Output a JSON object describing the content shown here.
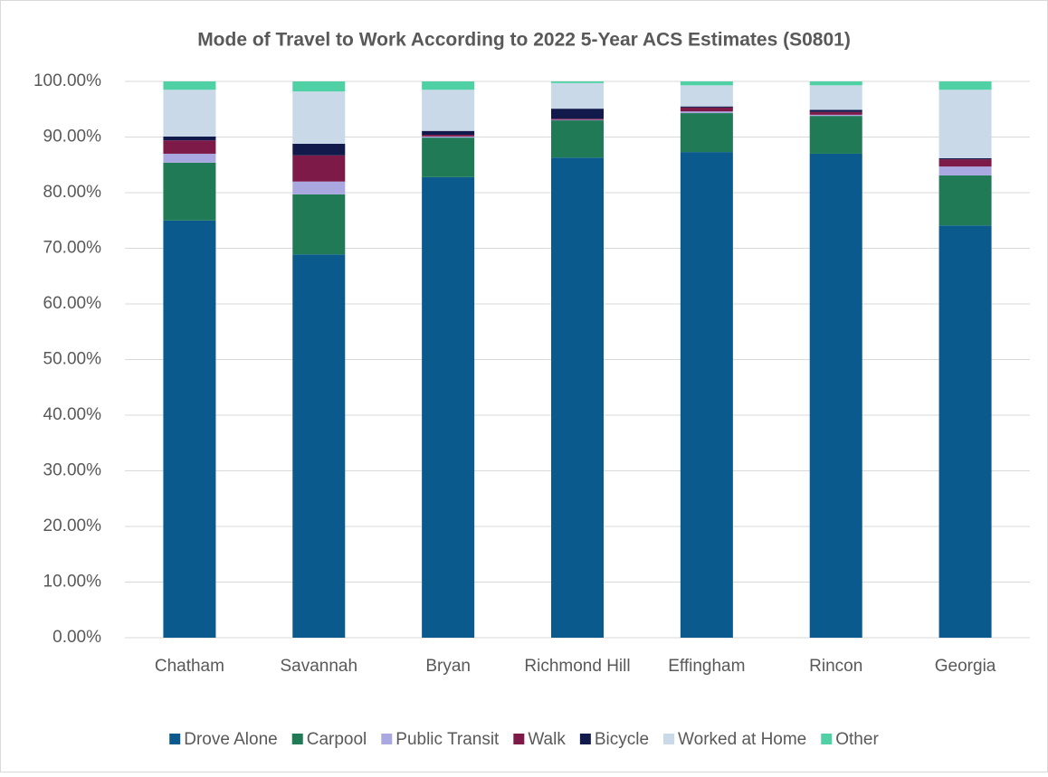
{
  "chart_data": {
    "type": "stacked_bar",
    "title": "Mode of Travel to Work According to 2022 5-Year ACS Estimates (S0801)",
    "categories": [
      "Chatham",
      "Savannah",
      "Bryan",
      "Richmond Hill",
      "Effingham",
      "Rincon",
      "Georgia"
    ],
    "series": [
      {
        "name": "Drove Alone",
        "color": "#0b5a8e",
        "values": [
          75.0,
          68.9,
          82.8,
          86.3,
          87.3,
          87.0,
          74.1
        ]
      },
      {
        "name": "Carpool",
        "color": "#1f7a55",
        "values": [
          10.4,
          10.8,
          7.1,
          6.7,
          7.0,
          6.8,
          9.0
        ]
      },
      {
        "name": "Public Transit",
        "color": "#aaa8e0",
        "values": [
          1.6,
          2.3,
          0.2,
          0.1,
          0.3,
          0.2,
          1.6
        ]
      },
      {
        "name": "Walk",
        "color": "#7e1a48",
        "values": [
          2.4,
          4.7,
          0.3,
          0.2,
          0.7,
          0.5,
          1.3
        ]
      },
      {
        "name": "Bicycle",
        "color": "#111a4a",
        "values": [
          0.7,
          2.1,
          0.7,
          1.8,
          0.2,
          0.4,
          0.2
        ]
      },
      {
        "name": "Worked at Home",
        "color": "#c9d9e8",
        "values": [
          8.4,
          9.4,
          7.4,
          4.6,
          3.8,
          4.4,
          12.3
        ]
      },
      {
        "name": "Other",
        "color": "#4fd1a5",
        "values": [
          1.5,
          1.8,
          1.5,
          0.3,
          0.7,
          0.7,
          1.5
        ]
      }
    ],
    "ylim": [
      0,
      100
    ],
    "yticks": [
      {
        "value": 0,
        "label": "0.00%"
      },
      {
        "value": 10,
        "label": "10.00%"
      },
      {
        "value": 20,
        "label": "20.00%"
      },
      {
        "value": 30,
        "label": "30.00%"
      },
      {
        "value": 40,
        "label": "40.00%"
      },
      {
        "value": 50,
        "label": "50.00%"
      },
      {
        "value": 60,
        "label": "60.00%"
      },
      {
        "value": 70,
        "label": "70.00%"
      },
      {
        "value": 80,
        "label": "80.00%"
      },
      {
        "value": 90,
        "label": "90.00%"
      },
      {
        "value": 100,
        "label": "100.00%"
      }
    ],
    "grid": true,
    "legend": "bottom"
  }
}
